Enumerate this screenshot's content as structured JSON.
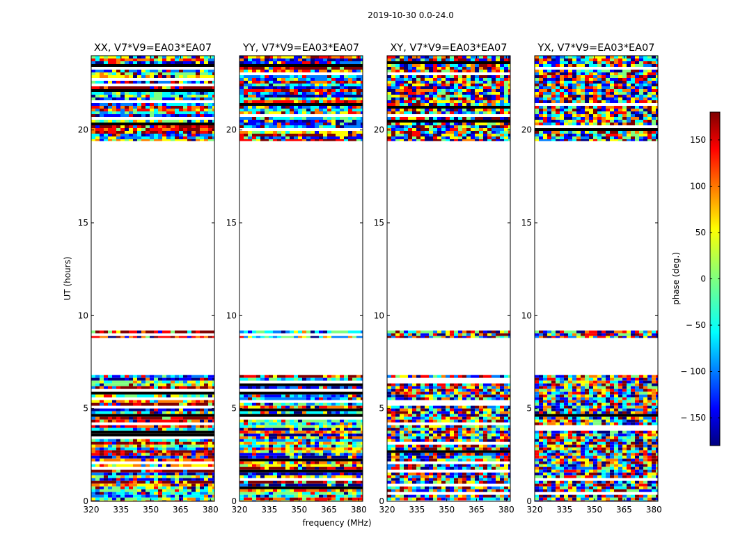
{
  "figure": {
    "suptitle": "2019-10-30 0.0-24.0",
    "xlabel": "frequency (MHz)",
    "ylabel": "UT (hours)"
  },
  "chart_data": {
    "type": "heatmap",
    "title": "2019-10-30 0.0-24.0",
    "xlabel": "frequency (MHz)",
    "ylabel": "UT (hours)",
    "xlim": [
      320,
      382
    ],
    "ylim": [
      0,
      24
    ],
    "x_ticks": [
      320,
      335,
      350,
      365,
      380
    ],
    "y_ticks": [
      0,
      5,
      10,
      15,
      20
    ],
    "panels": [
      {
        "title": "XX, V7*V9=EA03*EA07",
        "pol": "XX",
        "character": "coherent"
      },
      {
        "title": "YY, V7*V9=EA03*EA07",
        "pol": "YY",
        "character": "coherent"
      },
      {
        "title": "XY, V7*V9=EA03*EA07",
        "pol": "XY",
        "character": "noise"
      },
      {
        "title": "YX, V7*V9=EA03*EA07",
        "pol": "YX",
        "character": "noise"
      }
    ],
    "data_hour_ranges": [
      [
        0.0,
        6.8
      ],
      [
        8.8,
        9.2
      ],
      [
        19.4,
        24.0
      ]
    ],
    "colorbar": {
      "label": "phase (deg.)",
      "range": [
        -180,
        180
      ],
      "ticks": [
        150,
        100,
        50,
        0,
        -50,
        -100,
        -150
      ],
      "tick_labels": [
        "150",
        "100",
        "50",
        "0",
        "− 50",
        "− 100",
        "− 150"
      ],
      "colormap": "jet"
    }
  },
  "colors": {
    "jet": [
      "#00007f",
      "#0000ff",
      "#007fff",
      "#00ffff",
      "#7fff7f",
      "#ffff00",
      "#ff7f00",
      "#ff0000",
      "#7f0000"
    ]
  }
}
